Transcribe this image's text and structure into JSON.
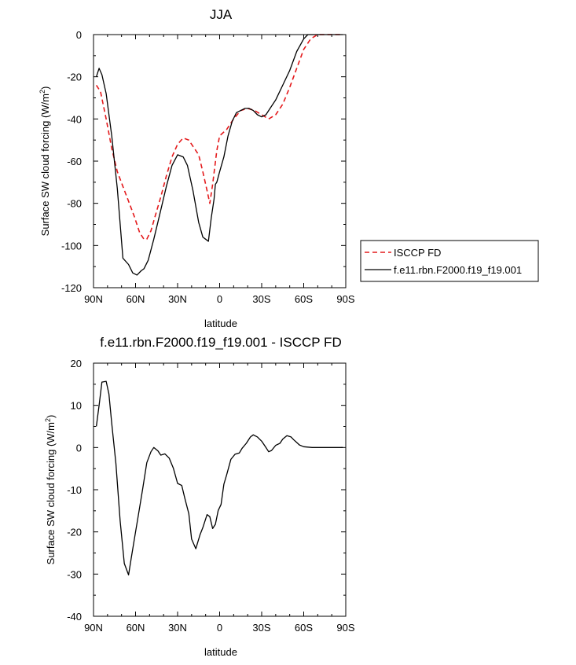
{
  "chart_data": [
    {
      "type": "line",
      "title": "JJA",
      "xlabel": "latitude",
      "ylabel": "Surface SW cloud forcing (W/m",
      "ylabel_sup": "2",
      "ylabel_close": ")",
      "xlim": [
        90,
        -90
      ],
      "ylim": [
        -120,
        0
      ],
      "x_ticks": [
        90,
        60,
        30,
        0,
        -30,
        -60,
        -90
      ],
      "x_tick_labels": [
        "90N",
        "60N",
        "30N",
        "0",
        "30S",
        "60S",
        "90S"
      ],
      "y_ticks": [
        0,
        -20,
        -40,
        -60,
        -80,
        -100,
        -120
      ],
      "y_tick_labels": [
        "0",
        "-20",
        "-40",
        "-60",
        "-80",
        "-100",
        "-120"
      ],
      "legend_position": "right",
      "series": [
        {
          "name": "ISCCP FD",
          "color": "#e41a1c",
          "dash": "dashed",
          "x": [
            88,
            85,
            81,
            77,
            73,
            69,
            65,
            61,
            57,
            54,
            52,
            49,
            46,
            42,
            38,
            34,
            30,
            26,
            22,
            19,
            15,
            12,
            9,
            7,
            5,
            2,
            0,
            -5,
            -10,
            -15,
            -20,
            -25,
            -30,
            -35,
            -40,
            -45,
            -50,
            -55,
            -60,
            -65,
            -70,
            -75,
            -80,
            -85,
            -88
          ],
          "y": [
            -24,
            -27,
            -40,
            -54,
            -65,
            -72,
            -79,
            -86,
            -94,
            -97,
            -97,
            -93,
            -86,
            -77,
            -67,
            -58,
            -52,
            -49,
            -50,
            -53,
            -57,
            -65,
            -74,
            -80,
            -71,
            -55,
            -48,
            -45,
            -40,
            -36,
            -35,
            -36,
            -38,
            -40,
            -38,
            -33,
            -25,
            -16,
            -7,
            -2,
            0,
            0,
            0,
            0,
            0
          ]
        },
        {
          "name": "f.e11.rbn.F2000.f19_f19.001",
          "color": "#000000",
          "dash": "solid",
          "x": [
            88,
            86,
            84,
            81,
            77,
            73,
            69,
            65,
            62,
            59,
            56,
            54,
            51,
            47,
            43,
            38,
            34,
            30,
            26,
            23,
            19,
            15,
            12,
            10,
            8,
            6,
            4,
            3,
            2,
            0,
            -3,
            -6,
            -9,
            -12,
            -15,
            -18,
            -21,
            -24,
            -27,
            -30,
            -33,
            -36,
            -40,
            -45,
            -50,
            -55,
            -60,
            -63,
            -66,
            -70,
            -75,
            -80,
            -85,
            -88
          ],
          "y": [
            -20,
            -16,
            -19,
            -28,
            -48,
            -73,
            -106,
            -109,
            -113,
            -114,
            -112,
            -111,
            -107,
            -97,
            -86,
            -72,
            -62,
            -57,
            -58,
            -62,
            -74,
            -89,
            -96,
            -97,
            -98,
            -87,
            -78,
            -71,
            -70,
            -65,
            -58,
            -48,
            -41,
            -37,
            -36,
            -35,
            -35,
            -36,
            -38,
            -39,
            -38,
            -35,
            -31,
            -24,
            -17,
            -8,
            -2,
            0,
            0,
            0,
            0,
            0,
            0,
            0
          ]
        }
      ]
    },
    {
      "type": "line",
      "title": "f.e11.rbn.F2000.f19_f19.001 - ISCCP FD",
      "xlabel": "latitude",
      "ylabel": "Surface SW cloud forcing (W/m",
      "ylabel_sup": "2",
      "ylabel_close": ")",
      "xlim": [
        90,
        -90
      ],
      "ylim": [
        -40,
        20
      ],
      "x_ticks": [
        90,
        60,
        30,
        0,
        -30,
        -60,
        -90
      ],
      "x_tick_labels": [
        "90N",
        "60N",
        "30N",
        "0",
        "30S",
        "60S",
        "90S"
      ],
      "y_ticks": [
        20,
        10,
        0,
        -10,
        -20,
        -30,
        -40
      ],
      "y_tick_labels": [
        "20",
        "10",
        "0",
        "-10",
        "-20",
        "-30",
        "-40"
      ],
      "series": [
        {
          "color": "#000000",
          "dash": "solid",
          "x": [
            88,
            86,
            84,
            81,
            79,
            77,
            74,
            71,
            68,
            65,
            63,
            60,
            58,
            55,
            52,
            49,
            47,
            44,
            42,
            39,
            36,
            33,
            30,
            27,
            25,
            22,
            20,
            17,
            14,
            12,
            9,
            7,
            5,
            3,
            1,
            -1,
            -3,
            -5,
            -8,
            -11,
            -14,
            -16,
            -19,
            -22,
            -24,
            -27,
            -30,
            -33,
            -35,
            -37,
            -40,
            -43,
            -45,
            -48,
            -51,
            -53,
            -55,
            -57,
            -60,
            -63,
            -66,
            -70,
            -75,
            -80,
            -85,
            -88
          ],
          "y": [
            5,
            10,
            15.5,
            15.7,
            12.7,
            5.7,
            -3.8,
            -17.4,
            -27.5,
            -30.2,
            -26,
            -20,
            -16,
            -10,
            -3.6,
            -1,
            0,
            -0.8,
            -1.8,
            -1.5,
            -2.5,
            -4.9,
            -8.5,
            -9,
            -11.8,
            -15.7,
            -21.7,
            -24,
            -20.7,
            -19,
            -15.9,
            -16.4,
            -19.2,
            -18.2,
            -14.9,
            -13.5,
            -8.7,
            -6.5,
            -2.8,
            -1.6,
            -1.3,
            -0.2,
            1,
            2.5,
            3,
            2.5,
            1.5,
            0,
            -1,
            -0.7,
            0.5,
            1,
            2,
            2.8,
            2.5,
            1.8,
            1.2,
            0.6,
            0.2,
            0.1,
            0,
            0,
            0,
            0,
            0,
            0
          ]
        }
      ]
    }
  ]
}
